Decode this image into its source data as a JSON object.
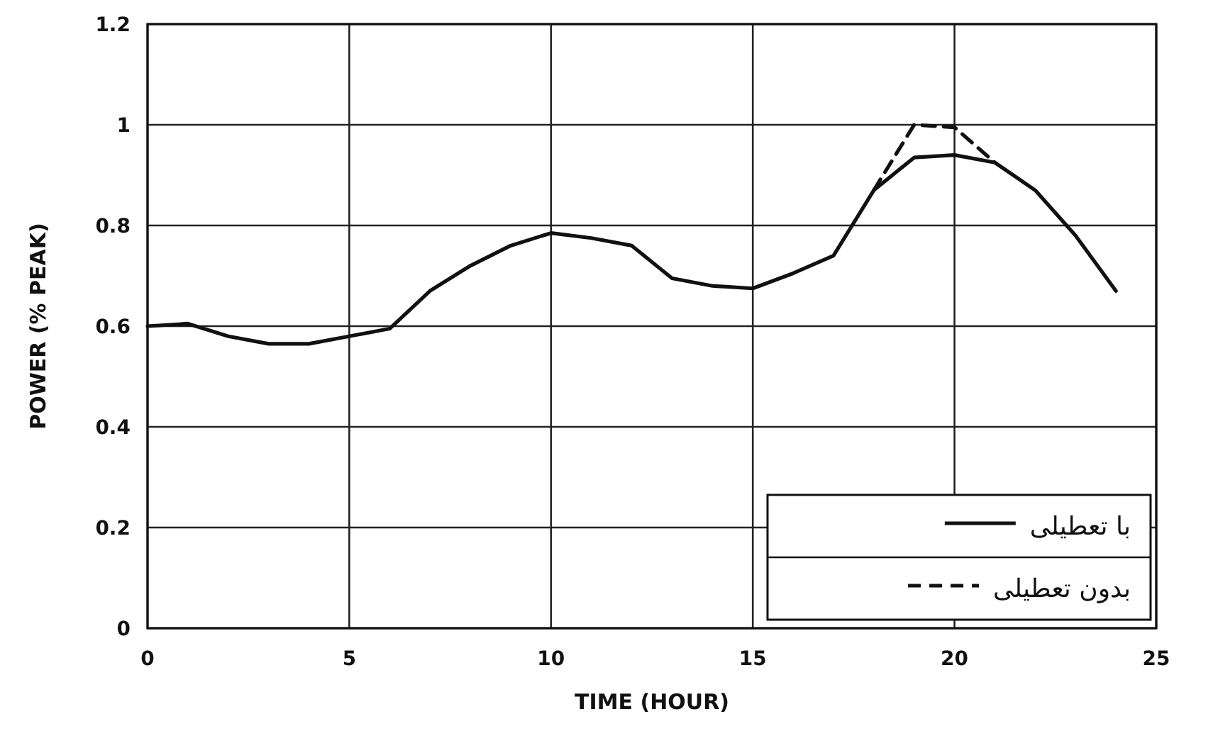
{
  "chart_data": {
    "type": "line",
    "xlabel": "TIME (HOUR)",
    "ylabel": "POWER (% PEAK)",
    "xlim": [
      0,
      25
    ],
    "xticks": [
      0,
      5,
      10,
      15,
      20,
      25
    ],
    "ylim": [
      0,
      1.2
    ],
    "yticks": [
      0,
      {
        "value": 0.2,
        "label": "0.2"
      },
      {
        "value": 0.4,
        "label": "0.4"
      },
      {
        "value": 0.6,
        "label": "0.6"
      },
      {
        "value": 0.8,
        "label": "0.8"
      },
      1,
      {
        "value": 1.2,
        "label": "1.2"
      }
    ],
    "grid": true,
    "legend": "bottom right",
    "marker": "none",
    "series": [
      {
        "name": "با تعطیلی",
        "color": "#111111",
        "line_style": "solid",
        "x": [
          0,
          1,
          2,
          3,
          4,
          5,
          6,
          7,
          8,
          9,
          10,
          11,
          12,
          13,
          14,
          15,
          16,
          17,
          18,
          19,
          20,
          21,
          22,
          23,
          24
        ],
        "values": [
          0.6,
          0.605,
          0.58,
          0.565,
          0.565,
          0.58,
          0.595,
          0.67,
          0.72,
          0.76,
          0.785,
          0.775,
          0.76,
          0.695,
          0.68,
          0.675,
          0.705,
          0.74,
          0.87,
          0.935,
          0.94,
          0.925,
          0.87,
          0.78,
          0.67
        ]
      },
      {
        "name": "بدون تعطیلی",
        "color": "#111111",
        "line_style": "dashed",
        "x": [
          18,
          19,
          20,
          21
        ],
        "values": [
          0.87,
          1.0,
          0.995,
          0.925
        ]
      }
    ]
  }
}
